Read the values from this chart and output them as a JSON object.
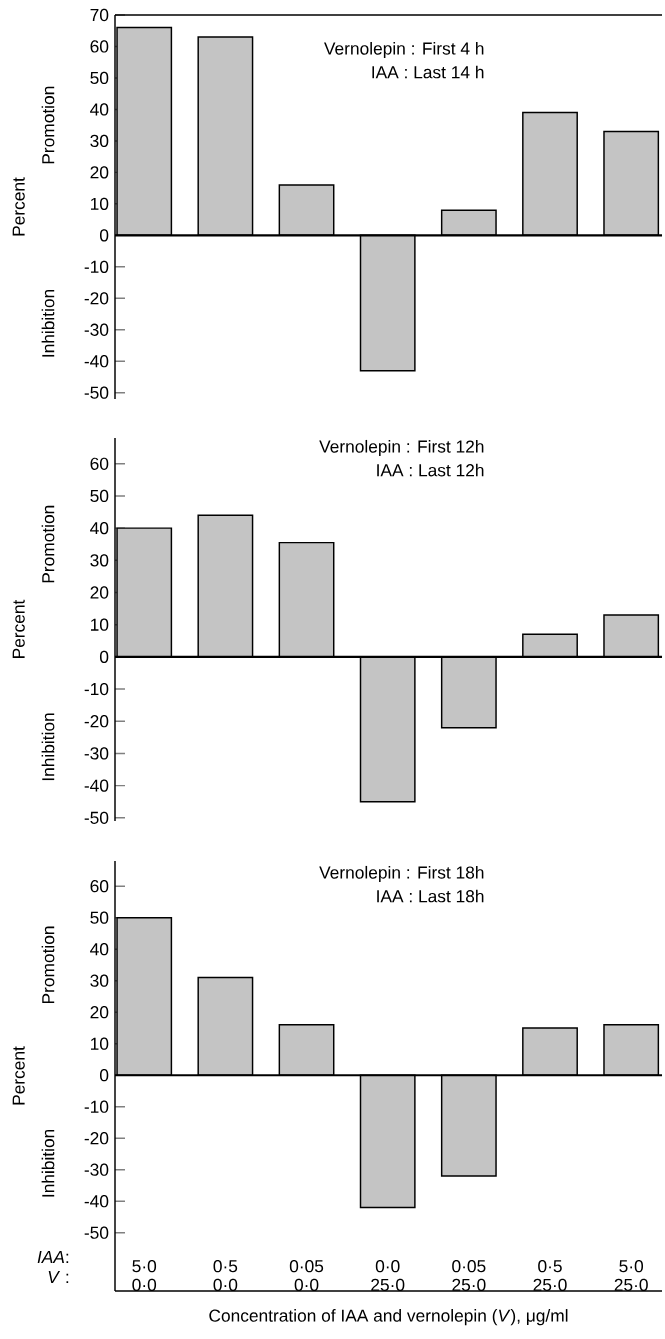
{
  "chart_data": [
    {
      "type": "bar",
      "categories": [
        null,
        null,
        null,
        null,
        null,
        null,
        null
      ],
      "values": [
        66,
        63,
        16,
        -43,
        8,
        39,
        33
      ],
      "color": "#c4c4c4",
      "ylim": [
        -52,
        70
      ],
      "yticks": [
        -50,
        -40,
        -30,
        -20,
        -10,
        0,
        10,
        20,
        30,
        40,
        50,
        60,
        70
      ],
      "ylabel": "Percent",
      "tick_labels": "y",
      "annotations": [
        "Vernolepin : First 4 h",
        "IAA : Last 14 h",
        "Promotion",
        "Inhibition"
      ],
      "ref_lines": [
        {
          "axis": "y",
          "value": 70
        }
      ]
    },
    {
      "type": "bar",
      "categories": [
        null,
        null,
        null,
        null,
        null,
        null,
        null
      ],
      "values": [
        40,
        44,
        35.5,
        -45,
        -22,
        7,
        13
      ],
      "color": "#c4c4c4",
      "ylim": [
        -51,
        68
      ],
      "yticks": [
        -50,
        -40,
        -30,
        -20,
        -10,
        0,
        10,
        20,
        30,
        40,
        50,
        60
      ],
      "ylabel": "Percent",
      "tick_labels": "y",
      "annotations": [
        "Vernolepin : First 12h",
        "IAA : Last 12h",
        "Promotion",
        "Inhibition"
      ]
    },
    {
      "type": "bar",
      "categories": [
        "5·0 0·0",
        "0·5 0·0",
        "0·05 0·0",
        "0·0 25·0",
        "0·05 25·0",
        "0·5 25·0",
        "5·0 25·0"
      ],
      "values": [
        50,
        31,
        16,
        -42,
        -32,
        15,
        16
      ],
      "color": "#c4c4c4",
      "ylim": [
        -68.5,
        68
      ],
      "yticks": [
        -50,
        -40,
        -30,
        -20,
        -10,
        0,
        10,
        20,
        30,
        40,
        50,
        60
      ],
      "ylabel": "Percent",
      "xlabel": "Concentration of IAA and vernolepin (*V*), μg/ml",
      "annotations": [
        "Vernolepin  : First 18h",
        "IAA  : Last 18h",
        "Promotion",
        "Inhibition",
        "*IAA*:",
        "*V*  :"
      ]
    }
  ]
}
